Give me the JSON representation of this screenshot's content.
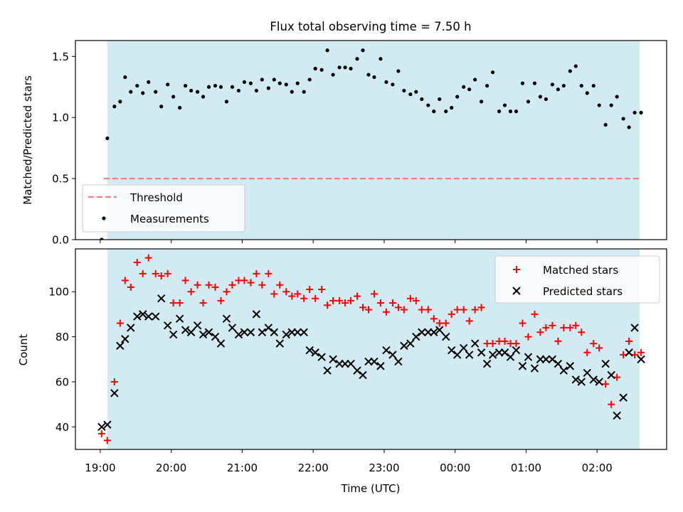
{
  "chart_data": [
    {
      "type": "scatter",
      "title": "Flux total observing time = 7.50 h",
      "xlabel": "",
      "ylabel": "Matched/Predicted stars",
      "xlim": [
        18.65,
        26.98
      ],
      "ylim": [
        0.0,
        1.63
      ],
      "ticks": [
        0.0,
        0.5,
        1.0,
        1.5
      ],
      "tick_labels": [
        "0.0",
        "0.5",
        "1.0",
        "1.5"
      ],
      "shaded_span": [
        19.1,
        26.6
      ],
      "threshold": {
        "name": "Threshold",
        "value": 0.5,
        "x_range": [
          19.05,
          26.6
        ],
        "color": "#f08080"
      },
      "legend": {
        "position": "lower-left",
        "entries": [
          "Threshold",
          "Measurements"
        ]
      },
      "series": [
        {
          "name": "Measurements",
          "color": "#000000",
          "x": [
            19.02,
            19.1,
            19.2,
            19.28,
            19.35,
            19.43,
            19.52,
            19.6,
            19.68,
            19.78,
            19.86,
            19.95,
            20.03,
            20.12,
            20.2,
            20.28,
            20.37,
            20.45,
            20.53,
            20.62,
            20.7,
            20.78,
            20.86,
            20.95,
            21.03,
            21.12,
            21.2,
            21.28,
            21.37,
            21.45,
            21.53,
            21.62,
            21.7,
            21.78,
            21.87,
            21.95,
            22.03,
            22.12,
            22.2,
            22.28,
            22.37,
            22.45,
            22.53,
            22.62,
            22.7,
            22.78,
            22.86,
            22.95,
            23.03,
            23.12,
            23.2,
            23.28,
            23.37,
            23.45,
            23.53,
            23.62,
            23.7,
            23.78,
            23.87,
            23.95,
            24.03,
            24.12,
            24.2,
            24.28,
            24.37,
            24.45,
            24.53,
            24.62,
            24.7,
            24.78,
            24.86,
            24.95,
            25.03,
            25.12,
            25.2,
            25.28,
            25.37,
            25.45,
            25.53,
            25.62,
            25.7,
            25.78,
            25.86,
            25.95,
            26.03,
            26.12,
            26.2,
            26.28,
            26.37,
            26.45,
            26.53,
            26.62
          ],
          "y": [
            0.0,
            0.83,
            1.09,
            1.13,
            1.33,
            1.21,
            1.26,
            1.2,
            1.29,
            1.21,
            1.09,
            1.27,
            1.17,
            1.08,
            1.26,
            1.22,
            1.21,
            1.17,
            1.25,
            1.26,
            1.25,
            1.13,
            1.25,
            1.22,
            1.29,
            1.28,
            1.22,
            1.31,
            1.24,
            1.31,
            1.28,
            1.27,
            1.21,
            1.28,
            1.21,
            1.31,
            1.4,
            1.39,
            1.55,
            1.35,
            1.41,
            1.41,
            1.4,
            1.48,
            1.55,
            1.35,
            1.33,
            1.48,
            1.29,
            1.27,
            1.38,
            1.22,
            1.19,
            1.21,
            1.15,
            1.1,
            1.05,
            1.15,
            1.05,
            1.08,
            1.17,
            1.25,
            1.23,
            1.31,
            1.13,
            1.26,
            1.37,
            1.05,
            1.1,
            1.05,
            1.05,
            1.28,
            1.13,
            1.28,
            1.17,
            1.15,
            1.27,
            1.23,
            1.26,
            1.38,
            1.42,
            1.26,
            1.2,
            1.26,
            1.1,
            0.94,
            1.1,
            1.17,
            0.99,
            0.92,
            1.04,
            1.04
          ]
        }
      ]
    },
    {
      "type": "scatter",
      "xlabel": "Time (UTC)",
      "ylabel": "Count",
      "xlim": [
        18.65,
        26.98
      ],
      "ylim": [
        30,
        119
      ],
      "ticks": [
        40,
        60,
        80,
        100
      ],
      "tick_labels": [
        "40",
        "60",
        "80",
        "100"
      ],
      "x_ticks": [
        19,
        20,
        21,
        22,
        23,
        24,
        25,
        26
      ],
      "x_tick_labels": [
        "19:00",
        "20:00",
        "21:00",
        "22:00",
        "23:00",
        "00:00",
        "01:00",
        "02:00"
      ],
      "shaded_span": [
        19.1,
        26.6
      ],
      "legend": {
        "position": "top-right",
        "entries": [
          "Matched stars",
          "Predicted stars"
        ]
      },
      "series": [
        {
          "name": "Matched stars",
          "marker": "+",
          "color": "#ff0000",
          "x": [
            19.02,
            19.1,
            19.2,
            19.28,
            19.35,
            19.43,
            19.52,
            19.6,
            19.68,
            19.78,
            19.86,
            19.95,
            20.03,
            20.12,
            20.2,
            20.28,
            20.37,
            20.45,
            20.53,
            20.62,
            20.7,
            20.78,
            20.86,
            20.95,
            21.03,
            21.12,
            21.2,
            21.28,
            21.37,
            21.45,
            21.53,
            21.62,
            21.7,
            21.78,
            21.87,
            21.95,
            22.03,
            22.12,
            22.2,
            22.28,
            22.37,
            22.45,
            22.53,
            22.62,
            22.7,
            22.78,
            22.86,
            22.95,
            23.03,
            23.12,
            23.2,
            23.28,
            23.37,
            23.45,
            23.53,
            23.62,
            23.7,
            23.78,
            23.87,
            23.95,
            24.03,
            24.12,
            24.2,
            24.28,
            24.37,
            24.45,
            24.53,
            24.62,
            24.7,
            24.78,
            24.86,
            24.95,
            25.03,
            25.12,
            25.2,
            25.28,
            25.37,
            25.45,
            25.53,
            25.62,
            25.7,
            25.78,
            25.86,
            25.95,
            26.03,
            26.12,
            26.2,
            26.28,
            26.37,
            26.45,
            26.53,
            26.62
          ],
          "y": [
            37,
            34,
            60,
            86,
            105,
            102,
            113,
            108,
            115,
            108,
            107,
            108,
            95,
            95,
            105,
            100,
            103,
            95,
            103,
            102,
            96,
            100,
            103,
            105,
            105,
            104,
            108,
            103,
            108,
            99,
            103,
            100,
            98,
            99,
            97,
            101,
            97,
            101,
            94,
            96,
            96,
            95,
            96,
            98,
            93,
            92,
            99,
            95,
            91,
            95,
            93,
            92,
            97,
            96,
            92,
            92,
            88,
            86,
            86,
            90,
            92,
            92,
            87,
            92,
            93,
            77,
            77,
            78,
            78,
            77,
            77,
            86,
            80,
            90,
            82,
            84,
            85,
            78,
            84,
            84,
            85,
            82,
            73,
            77,
            75,
            59,
            50,
            62,
            72,
            78,
            72,
            73
          ]
        },
        {
          "name": "Predicted stars",
          "marker": "x",
          "color": "#000000",
          "x": [
            19.02,
            19.1,
            19.2,
            19.28,
            19.35,
            19.43,
            19.52,
            19.6,
            19.68,
            19.78,
            19.86,
            19.95,
            20.03,
            20.12,
            20.2,
            20.28,
            20.37,
            20.45,
            20.53,
            20.62,
            20.7,
            20.78,
            20.86,
            20.95,
            21.03,
            21.12,
            21.2,
            21.28,
            21.37,
            21.45,
            21.53,
            21.62,
            21.7,
            21.78,
            21.87,
            21.95,
            22.03,
            22.12,
            22.2,
            22.28,
            22.37,
            22.45,
            22.53,
            22.62,
            22.7,
            22.78,
            22.86,
            22.95,
            23.03,
            23.12,
            23.2,
            23.28,
            23.37,
            23.45,
            23.53,
            23.62,
            23.7,
            23.78,
            23.87,
            23.95,
            24.03,
            24.12,
            24.2,
            24.28,
            24.37,
            24.45,
            24.53,
            24.62,
            24.7,
            24.78,
            24.86,
            24.95,
            25.03,
            25.12,
            25.2,
            25.28,
            25.37,
            25.45,
            25.53,
            25.62,
            25.7,
            25.78,
            25.86,
            25.95,
            26.03,
            26.12,
            26.2,
            26.28,
            26.37,
            26.45,
            26.53,
            26.62
          ],
          "y": [
            40,
            41,
            55,
            76,
            79,
            84,
            89,
            90,
            89,
            89,
            97,
            85,
            81,
            88,
            83,
            82,
            85,
            81,
            82,
            80,
            77,
            88,
            84,
            81,
            82,
            82,
            90,
            82,
            84,
            82,
            77,
            81,
            82,
            82,
            82,
            74,
            73,
            71,
            65,
            70,
            68,
            68,
            68,
            65,
            63,
            69,
            69,
            67,
            74,
            72,
            69,
            76,
            77,
            80,
            82,
            82,
            82,
            83,
            80,
            74,
            72,
            75,
            72,
            77,
            73,
            68,
            72,
            73,
            73,
            71,
            74,
            67,
            71,
            66,
            70,
            70,
            70,
            68,
            65,
            67,
            61,
            60,
            64,
            61,
            60,
            68,
            63,
            45,
            53,
            73,
            84,
            70
          ]
        }
      ]
    }
  ]
}
